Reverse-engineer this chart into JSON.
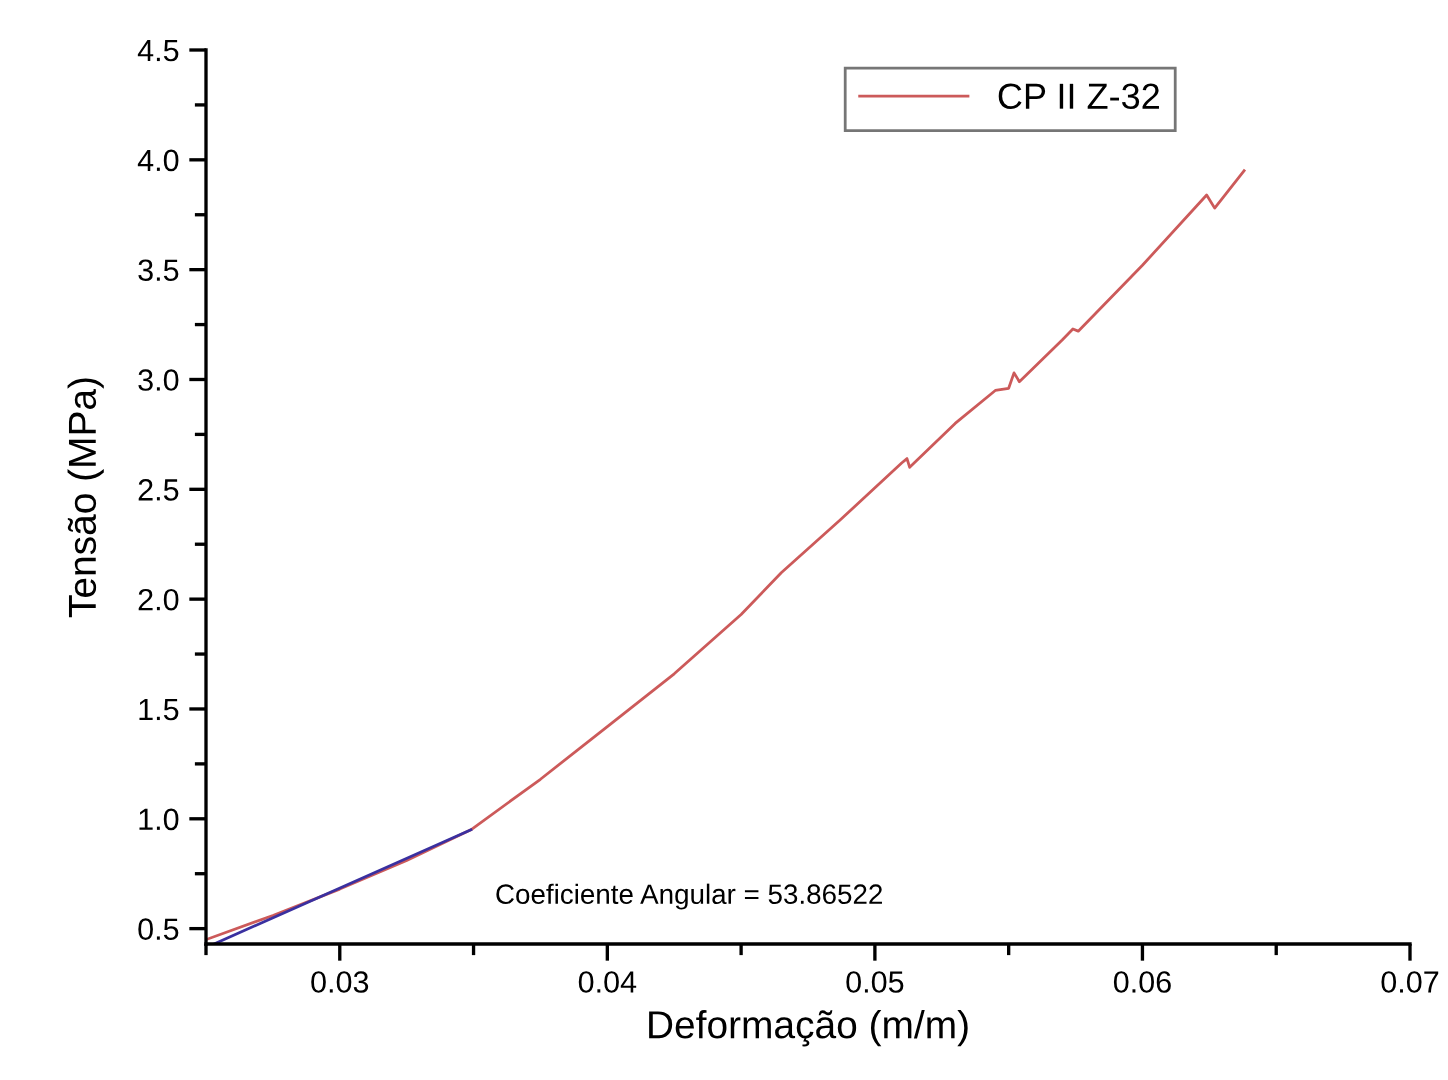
{
  "chart_data": {
    "type": "line",
    "xlabel": "Deformação (m/m)",
    "ylabel": "Tensão (MPa)",
    "xlim": [
      0.025,
      0.07
    ],
    "xticks": [
      0.03,
      0.04,
      0.05,
      0.06,
      0.07
    ],
    "ylim": [
      0.43,
      4.5
    ],
    "yticks": [
      0.5,
      {
        "value": 1,
        "label": "1.0"
      },
      1.5,
      {
        "value": 2,
        "label": "2.0"
      },
      2.5,
      {
        "value": 3,
        "label": "3.0"
      },
      3.5,
      {
        "value": 4,
        "label": "4.0"
      },
      4.5
    ],
    "grid": false,
    "legend": "top right",
    "marker": "none",
    "line_style": "solid",
    "annotations": [
      "Coeficiente Angular = 53.86522"
    ],
    "series": [
      {
        "name": "CP II Z-32",
        "color": "#cc5a5a",
        "x": [
          0.025,
          0.0275,
          0.03,
          0.0325,
          0.0349,
          0.0375,
          0.04,
          0.0425,
          0.045,
          0.0465,
          0.0487,
          0.051,
          0.0512,
          0.0513,
          0.053,
          0.0545,
          0.055,
          0.0552,
          0.0554,
          0.057,
          0.0574,
          0.0576,
          0.06,
          0.0624,
          0.0627,
          0.0638
        ],
        "values": [
          0.45,
          0.56,
          0.68,
          0.81,
          0.95,
          1.18,
          1.42,
          1.66,
          1.93,
          2.12,
          2.36,
          2.62,
          2.64,
          2.6,
          2.8,
          2.95,
          2.96,
          3.03,
          2.99,
          3.18,
          3.23,
          3.22,
          3.52,
          3.84,
          3.78,
          3.95
        ]
      },
      {
        "color": "#3a30a0",
        "x": [
          0.0253,
          0.0349
        ],
        "values": [
          0.43,
          0.95
        ]
      }
    ]
  }
}
